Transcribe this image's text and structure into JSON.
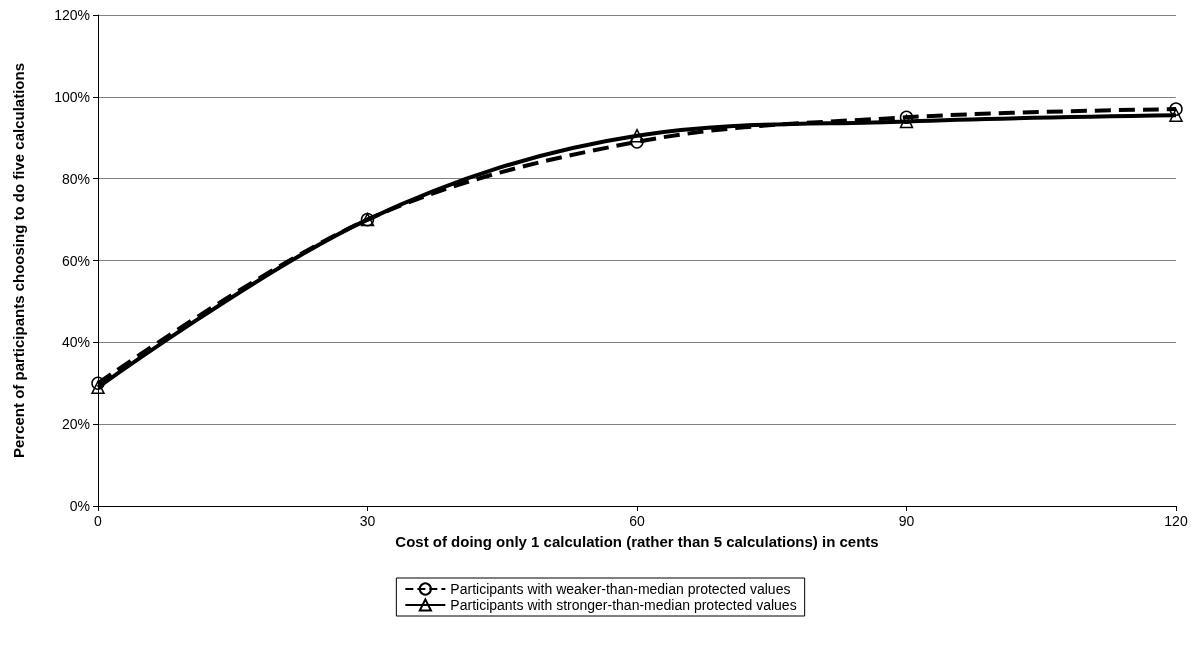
{
  "chart_data": {
    "type": "line",
    "xlabel": "Cost of doing only 1 calculation (rather than 5 calculations) in cents",
    "ylabel": "Percent of participants choosing to do five calculations",
    "x": [
      0,
      30,
      60,
      90,
      120
    ],
    "series": [
      {
        "name": "Participants with weaker-than-median protected values",
        "color": "#000000",
        "marker": "circle",
        "line_style": "dashed",
        "values": [
          30,
          70,
          89,
          95,
          97
        ]
      },
      {
        "name": "Participants with stronger-than-median protected values",
        "color": "#000000",
        "marker": "triangle",
        "line_style": "solid",
        "values": [
          29,
          70,
          90.5,
          94,
          95.5
        ]
      }
    ],
    "xlim": [
      0,
      120
    ],
    "xticks": [
      0,
      30,
      60,
      90,
      120
    ],
    "ylim": [
      0,
      120
    ],
    "yticks": [
      {
        "value": 0,
        "label": "0%"
      },
      {
        "value": 20,
        "label": "20%"
      },
      {
        "value": 40,
        "label": "40%"
      },
      {
        "value": 60,
        "label": "60%"
      },
      {
        "value": 80,
        "label": "80%"
      },
      {
        "value": 100,
        "label": "100%"
      },
      {
        "value": 120,
        "label": "120%"
      }
    ],
    "grid": "y",
    "legend": "bottom"
  }
}
